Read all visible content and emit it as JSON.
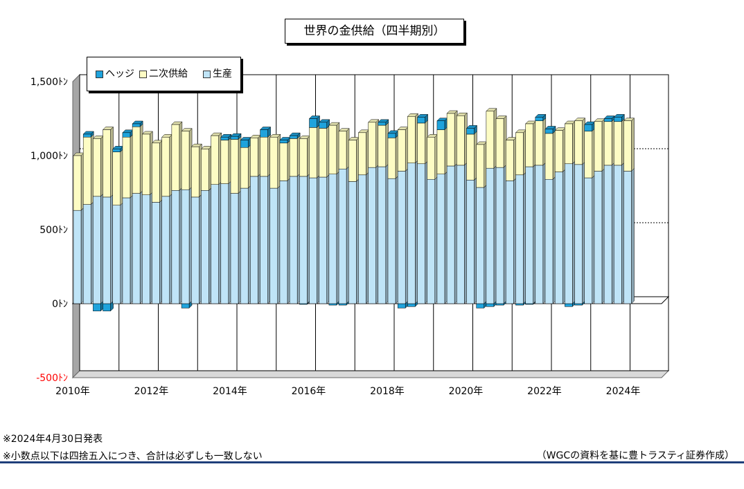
{
  "chart_data": {
    "type": "bar",
    "stacked": true,
    "title": "世界の金供給（四半期別）",
    "ylim": [
      -500,
      1500
    ],
    "yticks": [
      {
        "value": 1500,
        "label": "1,500ﾄﾝ"
      },
      {
        "value": 1000,
        "label": "1,000ﾄﾝ"
      },
      {
        "value": 500,
        "label": "500ﾄﾝ"
      },
      {
        "value": 0,
        "label": "0ﾄﾝ"
      },
      {
        "value": -500,
        "label": "-500ﾄﾝ"
      }
    ],
    "xticks": [
      "2010年",
      "2012年",
      "2014年",
      "2016年",
      "2018年",
      "2020年",
      "2022年",
      "2024年"
    ],
    "grid": true,
    "legend_position": "top-left",
    "series": [
      {
        "name": "生産",
        "color": "#bfe4f7",
        "values": [
          630,
          670,
          725,
          720,
          665,
          715,
          745,
          735,
          685,
          725,
          765,
          770,
          720,
          765,
          805,
          810,
          745,
          780,
          860,
          860,
          780,
          830,
          860,
          860,
          850,
          855,
          875,
          910,
          825,
          870,
          920,
          925,
          845,
          895,
          950,
          945,
          840,
          875,
          930,
          935,
          835,
          785,
          915,
          920,
          830,
          870,
          925,
          935,
          840,
          890,
          945,
          940,
          850,
          895,
          935,
          935,
          895
        ]
      },
      {
        "name": "二次供給",
        "color": "#fdfcc4",
        "values": [
          370,
          455,
          390,
          455,
          360,
          410,
          450,
          410,
          400,
          400,
          445,
          395,
          340,
          280,
          330,
          295,
          365,
          275,
          260,
          265,
          345,
          255,
          255,
          255,
          340,
          330,
          330,
          255,
          280,
          285,
          305,
          280,
          275,
          280,
          315,
          275,
          285,
          300,
          355,
          335,
          310,
          290,
          385,
          330,
          275,
          285,
          290,
          300,
          310,
          280,
          270,
          295,
          315,
          335,
          295,
          295,
          340
        ]
      },
      {
        "name": "ヘッジ",
        "color": "#1fa3dc",
        "values": [
          0,
          20,
          -50,
          -50,
          20,
          30,
          20,
          0,
          0,
          0,
          0,
          -30,
          0,
          0,
          0,
          20,
          20,
          50,
          0,
          50,
          0,
          20,
          20,
          -5,
          60,
          40,
          -10,
          -10,
          0,
          0,
          0,
          20,
          30,
          -30,
          -20,
          40,
          0,
          60,
          0,
          0,
          40,
          -30,
          -20,
          -10,
          0,
          -10,
          -5,
          25,
          30,
          0,
          -20,
          -10,
          45,
          0,
          20,
          30,
          0
        ]
      }
    ]
  },
  "notes": {
    "line1": "※2024年4月30日発表",
    "line2": "※小数点以下は四捨五入につき、合計は必ずしも一致しない",
    "source": "（WGCの資料を基に豊トラスティ証券作成）"
  }
}
